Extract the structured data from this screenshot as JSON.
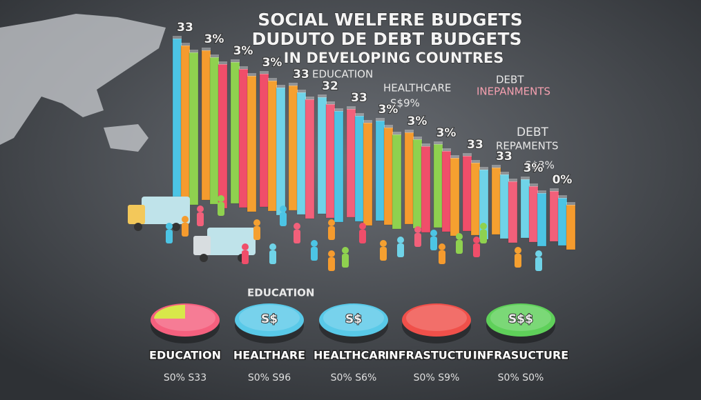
{
  "header": {
    "title_lines": [
      "SOCIAL WELFERE BUDGETS",
      "DUDUTO DE DEBT  BUDGETS",
      "IN DEVELOPING COUNTRES"
    ]
  },
  "labels": [
    {
      "text": "EDUCATION"
    },
    {
      "text": "HEALTHCARE"
    },
    {
      "text": "S$9%"
    },
    {
      "text": "DEBT"
    },
    {
      "text": "INEPANMENTS"
    },
    {
      "text": "DEBT"
    },
    {
      "text": "REPAMENTS"
    },
    {
      "text": "S$3%"
    },
    {
      "text": "EDUCATION"
    }
  ],
  "bar_labels": [
    "33",
    "3%",
    "3%",
    "3%",
    "33",
    "32",
    "33",
    "3%",
    "3%",
    "3%",
    "33",
    "33",
    "3%",
    "0%"
  ],
  "discs": [
    {
      "label": "EDUCATION",
      "value": "S0% S33"
    },
    {
      "label": "HEALTHARE",
      "value": "S0% S96",
      "icon": "S$"
    },
    {
      "label": "HEALTHCARE",
      "value": "S0% S6%",
      "icon": "S$"
    },
    {
      "label": "INFRASTUCTURE",
      "value": "S0% S9%"
    },
    {
      "label": "INFRASUCTURE",
      "value": "S0% S0%",
      "icon": "S$$"
    }
  ]
}
